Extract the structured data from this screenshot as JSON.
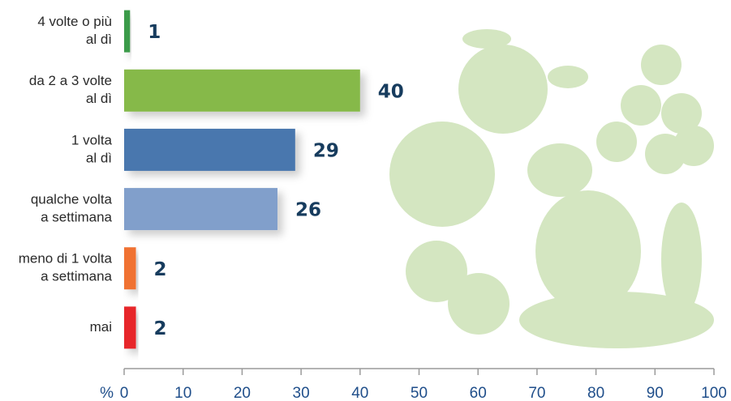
{
  "chart_data": {
    "type": "bar",
    "orientation": "horizontal",
    "categories": [
      [
        "4 volte o più",
        "al dì"
      ],
      [
        "da 2 a 3 volte",
        "al dì"
      ],
      [
        "1 volta",
        "al dì"
      ],
      [
        "qualche volta",
        "a settimana"
      ],
      [
        "meno di 1 volta",
        "a settimana"
      ],
      [
        "mai"
      ]
    ],
    "values": [
      1,
      40,
      29,
      26,
      2,
      2
    ],
    "colors": [
      "#3b9b48",
      "#86b94a",
      "#4a77ae",
      "#819fcb",
      "#f07231",
      "#e7262b"
    ],
    "xlabel": "%",
    "xlim": [
      0,
      100
    ],
    "xticks": [
      0,
      10,
      20,
      30,
      40,
      50,
      60,
      70,
      80,
      90,
      100
    ]
  }
}
